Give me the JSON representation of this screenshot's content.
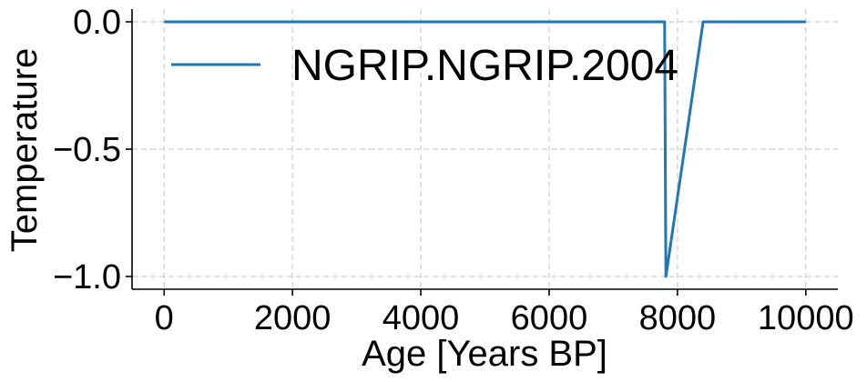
{
  "chart_data": {
    "type": "line",
    "xlabel": "Age [Years BP]",
    "ylabel": "Temperature",
    "xlim": [
      -500,
      10500
    ],
    "ylim": [
      -1.05,
      0.05
    ],
    "xticks": [
      0,
      2000,
      4000,
      6000,
      8000,
      10000
    ],
    "yticks": [
      0.0,
      -0.5,
      -1.0
    ],
    "ytick_labels": [
      "0.0",
      "−0.5",
      "−1.0"
    ],
    "grid": true,
    "legend_position": "top-left",
    "series": [
      {
        "name": "NGRIP.NGRIP.2004",
        "color": "#1f77b4",
        "x": [
          0,
          7800,
          7820,
          8400,
          10000
        ],
        "y": [
          0,
          0,
          -1.0,
          0,
          0
        ]
      }
    ]
  }
}
